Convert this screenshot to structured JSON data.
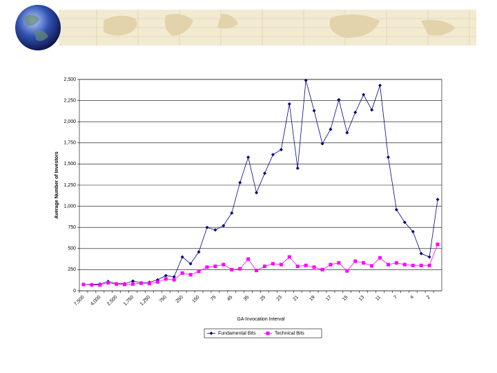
{
  "chart_data": {
    "type": "line",
    "x_label": "GA-Invocation Interval",
    "y_label": "Average Number of Investors",
    "categories": [
      "7,500",
      null,
      "4,000",
      null,
      "2,500",
      null,
      "1,750",
      null,
      "1,250",
      null,
      "750",
      null,
      "250",
      null,
      "150",
      null,
      "75",
      null,
      "45",
      null,
      "35",
      null,
      "25",
      null,
      "23",
      null,
      "21",
      null,
      "19",
      null,
      "17",
      null,
      "15",
      null,
      "13",
      null,
      "11",
      null,
      "7",
      null,
      "4",
      null,
      "2",
      null
    ],
    "series": [
      {
        "name": "Fundamental Bits",
        "color": "#000080",
        "marker": "diamond",
        "values": [
          75,
          75,
          80,
          110,
          85,
          85,
          115,
          95,
          100,
          130,
          180,
          165,
          400,
          320,
          460,
          750,
          720,
          770,
          920,
          1280,
          1580,
          1160,
          1390,
          1610,
          1670,
          2210,
          1450,
          2490,
          2130,
          1740,
          1910,
          2260,
          1870,
          2110,
          2320,
          2140,
          2430,
          1580,
          960,
          810,
          700,
          440,
          400,
          1080
        ]
      },
      {
        "name": "Technical Bits",
        "color": "#ff00ff",
        "marker": "square",
        "values": [
          75,
          70,
          70,
          95,
          80,
          75,
          80,
          90,
          85,
          105,
          140,
          130,
          210,
          190,
          230,
          280,
          290,
          310,
          250,
          260,
          375,
          240,
          290,
          320,
          310,
          400,
          290,
          300,
          280,
          250,
          310,
          330,
          235,
          350,
          330,
          295,
          390,
          310,
          330,
          310,
          300,
          300,
          300,
          550
        ]
      }
    ],
    "ylim": [
      0,
      2500
    ],
    "yticks": [
      0,
      250,
      500,
      750,
      {
        "value": 1000,
        "label": "1,000"
      },
      {
        "value": 1250,
        "label": "1,250"
      },
      {
        "value": 1500,
        "label": "1,500"
      },
      {
        "value": 1750,
        "label": "1,750"
      },
      {
        "value": 2000,
        "label": "2,000"
      },
      {
        "value": 2250,
        "label": "2,250"
      },
      {
        "value": 2500,
        "label": "2,500"
      }
    ],
    "grid": true,
    "legend": "bottom"
  }
}
